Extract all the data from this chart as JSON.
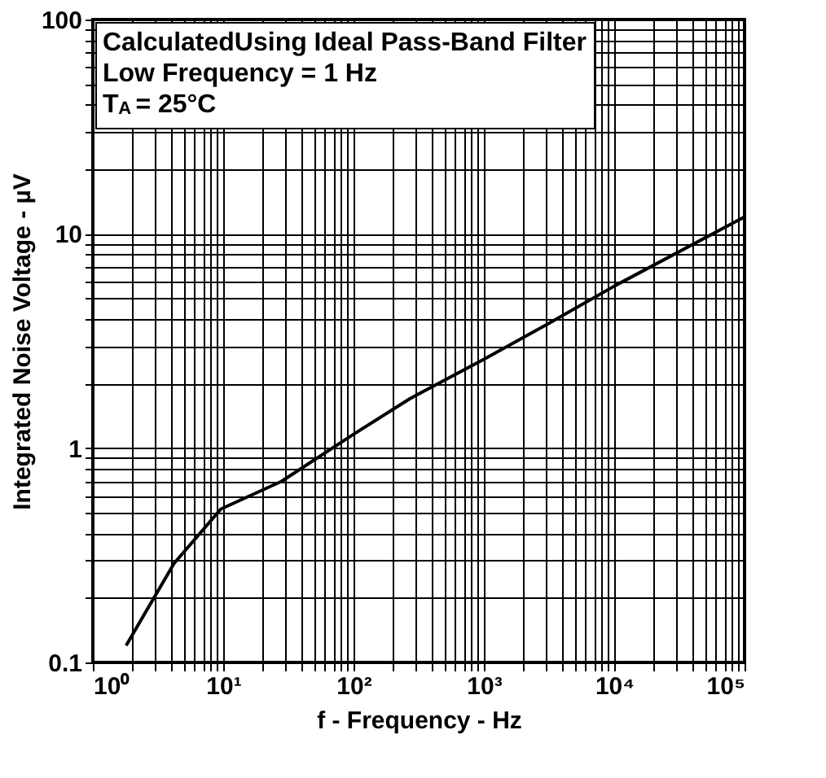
{
  "chart_data": {
    "type": "line",
    "xlabel": "f - Frequency - Hz",
    "ylabel": "Integrated Noise Voltage - µV",
    "annotations": [
      "CalculatedUsing Ideal Pass-Band Filter",
      "Low Frequency = 1 Hz",
      "T$_{A}$ = 25°C"
    ],
    "log": "xy",
    "grid": true,
    "marker": "none",
    "line_style": "solid",
    "xlim": [
      1,
      100000
    ],
    "ylim": [
      0.1,
      100
    ],
    "xticks": [
      {
        "value": 1,
        "label": "10⁰"
      },
      {
        "value": 2,
        "label": null
      },
      {
        "value": 3,
        "label": null
      },
      {
        "value": 4,
        "label": null
      },
      {
        "value": 5,
        "label": null
      },
      {
        "value": 6,
        "label": null
      },
      {
        "value": 7,
        "label": null
      },
      {
        "value": 8,
        "label": null
      },
      {
        "value": 9,
        "label": null
      },
      {
        "value": 10,
        "label": "10¹"
      },
      {
        "value": 20,
        "label": null
      },
      {
        "value": 30,
        "label": null
      },
      {
        "value": 40,
        "label": null
      },
      {
        "value": 50,
        "label": null
      },
      {
        "value": 60,
        "label": null
      },
      {
        "value": 70,
        "label": null
      },
      {
        "value": 80,
        "label": null
      },
      {
        "value": 90,
        "label": null
      },
      {
        "value": 100,
        "label": "10²"
      },
      {
        "value": 200,
        "label": null
      },
      {
        "value": 300,
        "label": null
      },
      {
        "value": 400,
        "label": null
      },
      {
        "value": 500,
        "label": null
      },
      {
        "value": 600,
        "label": null
      },
      {
        "value": 700,
        "label": null
      },
      {
        "value": 800,
        "label": null
      },
      {
        "value": 900,
        "label": null
      },
      {
        "value": 1000,
        "label": "10³"
      },
      {
        "value": 2000,
        "label": null
      },
      {
        "value": 3000,
        "label": null
      },
      {
        "value": 4000,
        "label": null
      },
      {
        "value": 5000,
        "label": null
      },
      {
        "value": 6000,
        "label": null
      },
      {
        "value": 7000,
        "label": null
      },
      {
        "value": 8000,
        "label": null
      },
      {
        "value": 9000,
        "label": null
      },
      {
        "value": 10000,
        "label": "10⁴"
      },
      {
        "value": 20000,
        "label": null
      },
      {
        "value": 30000,
        "label": null
      },
      {
        "value": 40000,
        "label": null
      },
      {
        "value": 50000,
        "label": null
      },
      {
        "value": 60000,
        "label": null
      },
      {
        "value": 70000,
        "label": null
      },
      {
        "value": 80000,
        "label": null
      },
      {
        "value": 90000,
        "label": null
      },
      {
        "value": 100000,
        "label": "10⁵"
      }
    ],
    "yticks": [
      {
        "value": 0.1,
        "label": "0.1"
      },
      {
        "value": 0.2,
        "label": null
      },
      {
        "value": 0.3,
        "label": null
      },
      {
        "value": 0.4,
        "label": null
      },
      {
        "value": 0.5,
        "label": null
      },
      {
        "value": 0.6,
        "label": null
      },
      {
        "value": 0.7,
        "label": null
      },
      {
        "value": 0.8,
        "label": null
      },
      {
        "value": 0.9,
        "label": null
      },
      {
        "value": 1,
        "label": "1"
      },
      {
        "value": 2,
        "label": null
      },
      {
        "value": 3,
        "label": null
      },
      {
        "value": 4,
        "label": null
      },
      {
        "value": 5,
        "label": null
      },
      {
        "value": 6,
        "label": null
      },
      {
        "value": 7,
        "label": null
      },
      {
        "value": 8,
        "label": null
      },
      {
        "value": 9,
        "label": null
      },
      {
        "value": 10,
        "label": "10"
      },
      {
        "value": 20,
        "label": null
      },
      {
        "value": 30,
        "label": null
      },
      {
        "value": 40,
        "label": null
      },
      {
        "value": 50,
        "label": null
      },
      {
        "value": 60,
        "label": null
      },
      {
        "value": 70,
        "label": null
      },
      {
        "value": 80,
        "label": null
      },
      {
        "value": 90,
        "label": null
      },
      {
        "value": 100,
        "label": "100"
      }
    ],
    "series": [
      {
        "color": "#000000",
        "x": [
          1.8,
          4.2,
          9.6,
          28,
          100,
          270,
          1000,
          3100,
          10000,
          100000
        ],
        "values": [
          0.12,
          0.29,
          0.52,
          0.7,
          1.16,
          1.7,
          2.6,
          3.8,
          5.7,
          12
        ]
      }
    ]
  }
}
